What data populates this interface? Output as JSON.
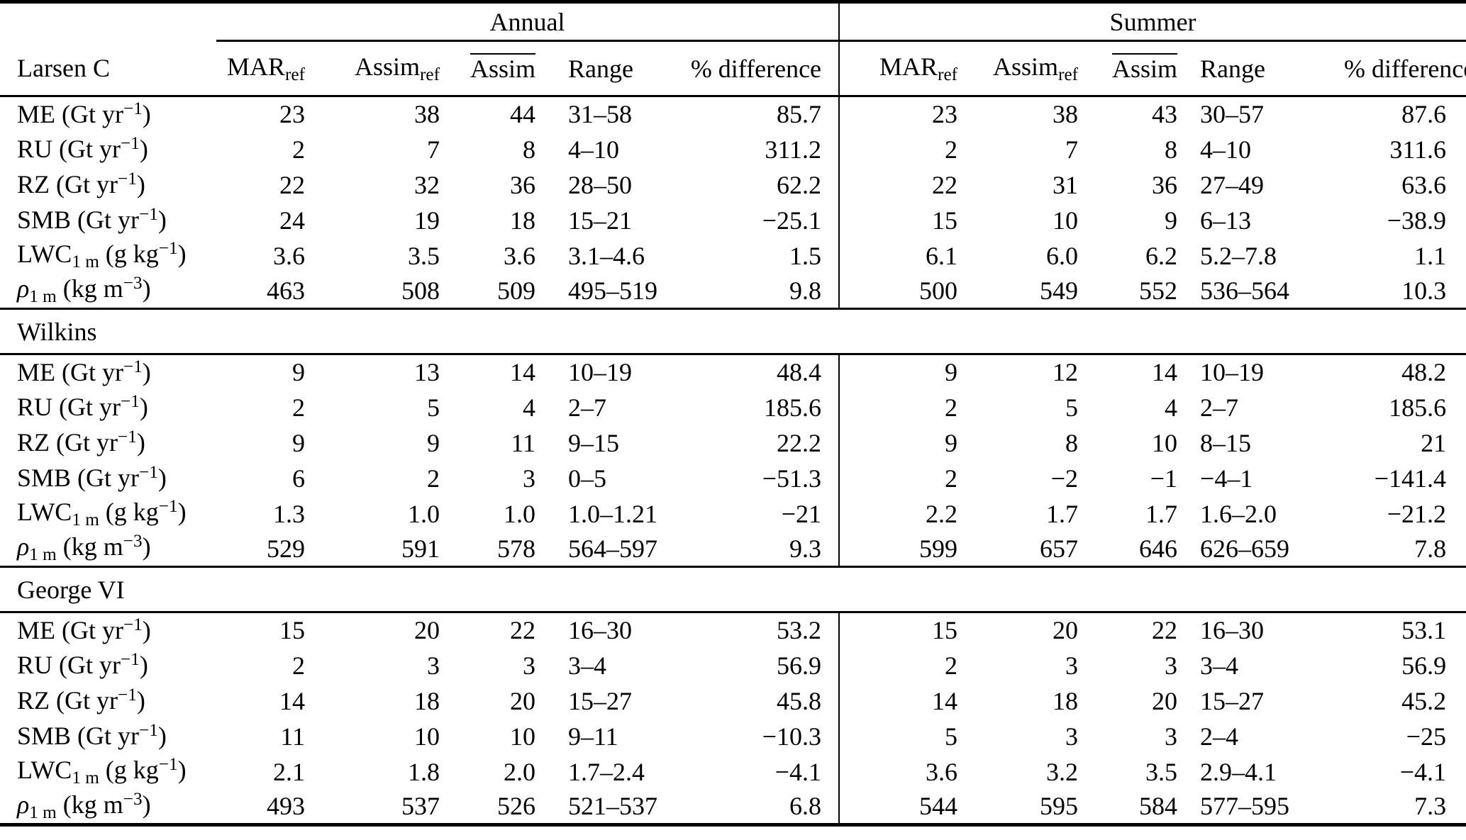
{
  "table": {
    "groups": [
      {
        "label": "Annual"
      },
      {
        "label": "Summer"
      }
    ],
    "columns": [
      {
        "base": "MAR",
        "sub": "ref",
        "overline": false
      },
      {
        "base": "Assim",
        "sub": "ref",
        "overline": false
      },
      {
        "base": "Assim",
        "sub": "",
        "overline": true
      },
      {
        "base": "Range",
        "sub": "",
        "overline": false
      },
      {
        "base": "% difference",
        "sub": "",
        "overline": false
      }
    ],
    "sections": [
      {
        "name": "Larsen C",
        "rows": [
          {
            "label": {
              "base": "ME",
              "sub": "",
              "unit_pre": " (Gt yr",
              "unit_sup": "−1",
              "unit_post": ")",
              "italic": false
            },
            "annual": [
              "23",
              "38",
              "44",
              "31–58",
              "85.7"
            ],
            "summer": [
              "23",
              "38",
              "43",
              "30–57",
              "87.6"
            ]
          },
          {
            "label": {
              "base": "RU",
              "sub": "",
              "unit_pre": " (Gt yr",
              "unit_sup": "−1",
              "unit_post": ")",
              "italic": false
            },
            "annual": [
              "2",
              "7",
              "8",
              "4–10",
              "311.2"
            ],
            "summer": [
              "2",
              "7",
              "8",
              "4–10",
              "311.6"
            ]
          },
          {
            "label": {
              "base": "RZ",
              "sub": "",
              "unit_pre": " (Gt yr",
              "unit_sup": "−1",
              "unit_post": ")",
              "italic": false
            },
            "annual": [
              "22",
              "32",
              "36",
              "28–50",
              "62.2"
            ],
            "summer": [
              "22",
              "31",
              "36",
              "27–49",
              "63.6"
            ]
          },
          {
            "label": {
              "base": "SMB",
              "sub": "",
              "unit_pre": " (Gt yr",
              "unit_sup": "−1",
              "unit_post": ")",
              "italic": false
            },
            "annual": [
              "24",
              "19",
              "18",
              "15–21",
              "−25.1"
            ],
            "summer": [
              "15",
              "10",
              "9",
              "6–13",
              "−38.9"
            ]
          },
          {
            "label": {
              "base": "LWC",
              "sub": "1 m",
              "unit_pre": " (g kg",
              "unit_sup": "−1",
              "unit_post": ")",
              "italic": false
            },
            "annual": [
              "3.6",
              "3.5",
              "3.6",
              "3.1–4.6",
              "1.5"
            ],
            "summer": [
              "6.1",
              "6.0",
              "6.2",
              "5.2–7.8",
              "1.1"
            ]
          },
          {
            "label": {
              "base": "ρ",
              "sub": "1 m",
              "unit_pre": " (kg m",
              "unit_sup": "−3",
              "unit_post": ")",
              "italic": true
            },
            "annual": [
              "463",
              "508",
              "509",
              "495–519",
              "9.8"
            ],
            "summer": [
              "500",
              "549",
              "552",
              "536–564",
              "10.3"
            ]
          }
        ]
      },
      {
        "name": "Wilkins",
        "rows": [
          {
            "label": {
              "base": "ME",
              "sub": "",
              "unit_pre": " (Gt yr",
              "unit_sup": "−1",
              "unit_post": ")",
              "italic": false
            },
            "annual": [
              "9",
              "13",
              "14",
              "10–19",
              "48.4"
            ],
            "summer": [
              "9",
              "12",
              "14",
              "10–19",
              "48.2"
            ]
          },
          {
            "label": {
              "base": "RU",
              "sub": "",
              "unit_pre": " (Gt yr",
              "unit_sup": "−1",
              "unit_post": ")",
              "italic": false
            },
            "annual": [
              "2",
              "5",
              "4",
              "2–7",
              "185.6"
            ],
            "summer": [
              "2",
              "5",
              "4",
              "2–7",
              "185.6"
            ]
          },
          {
            "label": {
              "base": "RZ",
              "sub": "",
              "unit_pre": " (Gt yr",
              "unit_sup": "−1",
              "unit_post": ")",
              "italic": false
            },
            "annual": [
              "9",
              "9",
              "11",
              "9–15",
              "22.2"
            ],
            "summer": [
              "9",
              "8",
              "10",
              "8–15",
              "21"
            ]
          },
          {
            "label": {
              "base": "SMB",
              "sub": "",
              "unit_pre": " (Gt yr",
              "unit_sup": "−1",
              "unit_post": ")",
              "italic": false
            },
            "annual": [
              "6",
              "2",
              "3",
              "0–5",
              "−51.3"
            ],
            "summer": [
              "2",
              "−2",
              "−1",
              "−4–1",
              "−141.4"
            ]
          },
          {
            "label": {
              "base": "LWC",
              "sub": "1 m",
              "unit_pre": " (g kg",
              "unit_sup": "−1",
              "unit_post": ")",
              "italic": false
            },
            "annual": [
              "1.3",
              "1.0",
              "1.0",
              "1.0–1.21",
              "−21"
            ],
            "summer": [
              "2.2",
              "1.7",
              "1.7",
              "1.6–2.0",
              "−21.2"
            ]
          },
          {
            "label": {
              "base": "ρ",
              "sub": "1 m",
              "unit_pre": " (kg m",
              "unit_sup": "−3",
              "unit_post": ")",
              "italic": true
            },
            "annual": [
              "529",
              "591",
              "578",
              "564–597",
              "9.3"
            ],
            "summer": [
              "599",
              "657",
              "646",
              "626–659",
              "7.8"
            ]
          }
        ]
      },
      {
        "name": "George VI",
        "rows": [
          {
            "label": {
              "base": "ME",
              "sub": "",
              "unit_pre": " (Gt yr",
              "unit_sup": "−1",
              "unit_post": ")",
              "italic": false
            },
            "annual": [
              "15",
              "20",
              "22",
              "16–30",
              "53.2"
            ],
            "summer": [
              "15",
              "20",
              "22",
              "16–30",
              "53.1"
            ]
          },
          {
            "label": {
              "base": "RU",
              "sub": "",
              "unit_pre": " (Gt yr",
              "unit_sup": "−1",
              "unit_post": ")",
              "italic": false
            },
            "annual": [
              "2",
              "3",
              "3",
              "3–4",
              "56.9"
            ],
            "summer": [
              "2",
              "3",
              "3",
              "3–4",
              "56.9"
            ]
          },
          {
            "label": {
              "base": "RZ",
              "sub": "",
              "unit_pre": " (Gt yr",
              "unit_sup": "−1",
              "unit_post": ")",
              "italic": false
            },
            "annual": [
              "14",
              "18",
              "20",
              "15–27",
              "45.8"
            ],
            "summer": [
              "14",
              "18",
              "20",
              "15–27",
              "45.2"
            ]
          },
          {
            "label": {
              "base": "SMB",
              "sub": "",
              "unit_pre": " (Gt yr",
              "unit_sup": "−1",
              "unit_post": ")",
              "italic": false
            },
            "annual": [
              "11",
              "10",
              "10",
              "9–11",
              "−10.3"
            ],
            "summer": [
              "5",
              "3",
              "3",
              "2–4",
              "−25"
            ]
          },
          {
            "label": {
              "base": "LWC",
              "sub": "1 m",
              "unit_pre": " (g kg",
              "unit_sup": "−1",
              "unit_post": ")",
              "italic": false
            },
            "annual": [
              "2.1",
              "1.8",
              "2.0",
              "1.7–2.4",
              "−4.1"
            ],
            "summer": [
              "3.6",
              "3.2",
              "3.5",
              "2.9–4.1",
              "−4.1"
            ]
          },
          {
            "label": {
              "base": "ρ",
              "sub": "1 m",
              "unit_pre": " (kg m",
              "unit_sup": "−3",
              "unit_post": ")",
              "italic": true
            },
            "annual": [
              "493",
              "537",
              "526",
              "521–537",
              "6.8"
            ],
            "summer": [
              "544",
              "595",
              "584",
              "577–595",
              "7.3"
            ]
          }
        ]
      }
    ]
  }
}
